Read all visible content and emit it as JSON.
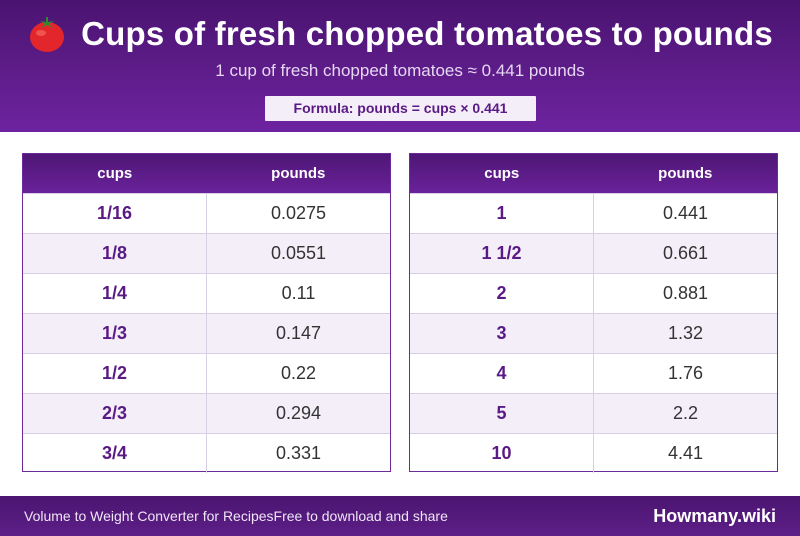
{
  "header": {
    "title": "Cups of fresh chopped tomatoes to pounds",
    "subtitle": "1 cup of fresh chopped tomatoes ≈ 0.441 pounds",
    "formula": "Formula: pounds = cups × 0.441",
    "icon": "tomato-icon"
  },
  "tables": [
    {
      "headers": [
        "cups",
        "pounds"
      ],
      "rows": [
        [
          "1/16",
          "0.0275"
        ],
        [
          "1/8",
          "0.0551"
        ],
        [
          "1/4",
          "0.11"
        ],
        [
          "1/3",
          "0.147"
        ],
        [
          "1/2",
          "0.22"
        ],
        [
          "2/3",
          "0.294"
        ],
        [
          "3/4",
          "0.331"
        ]
      ]
    },
    {
      "headers": [
        "cups",
        "pounds"
      ],
      "rows": [
        [
          "1",
          "0.441"
        ],
        [
          "1 1/2",
          "0.661"
        ],
        [
          "2",
          "0.881"
        ],
        [
          "3",
          "1.32"
        ],
        [
          "4",
          "1.76"
        ],
        [
          "5",
          "2.2"
        ],
        [
          "10",
          "4.41"
        ]
      ]
    }
  ],
  "footer": {
    "left_text": "Volume to Weight Converter for RecipesFree to download and share",
    "brand": "Howmany.wiki"
  },
  "colors": {
    "header_purple": "#5e1d8a",
    "accent_purple": "#5a1a86",
    "row_alt": "#f3eef8",
    "tomato_red": "#e3262b"
  }
}
